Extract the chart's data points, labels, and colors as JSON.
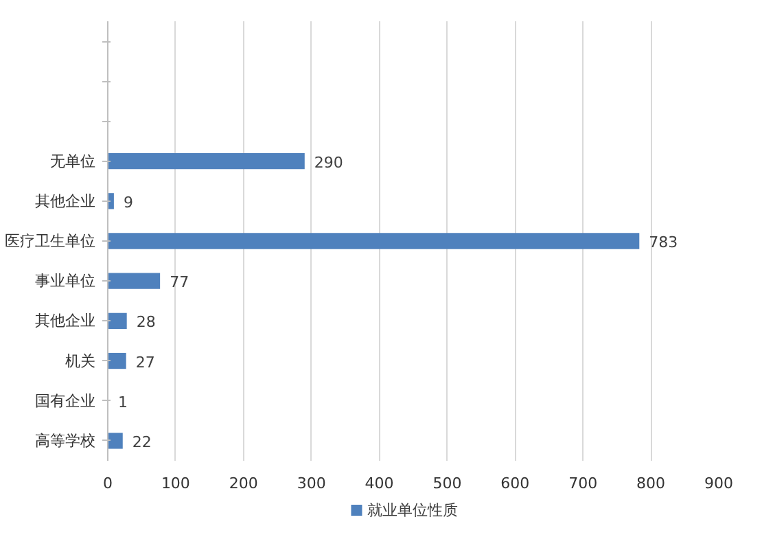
{
  "chart_data": {
    "type": "bar",
    "orientation": "horizontal",
    "categories": [
      null,
      null,
      null,
      "无单位",
      "其他企业",
      "医疗卫生单位",
      "事业单位",
      "其他企业",
      "机关",
      "国有企业",
      "高等学校"
    ],
    "series": [
      {
        "name": "就业单位性质",
        "color": "#4f81bd",
        "values": [
          null,
          null,
          null,
          290,
          9,
          783,
          77,
          28,
          27,
          1,
          22
        ]
      }
    ],
    "xlim": [
      0,
      900
    ],
    "xticks": [
      0,
      100,
      200,
      300,
      400,
      500,
      600,
      700,
      800,
      900
    ],
    "grid": "x",
    "legend": "bottom",
    "data_labels": true
  }
}
